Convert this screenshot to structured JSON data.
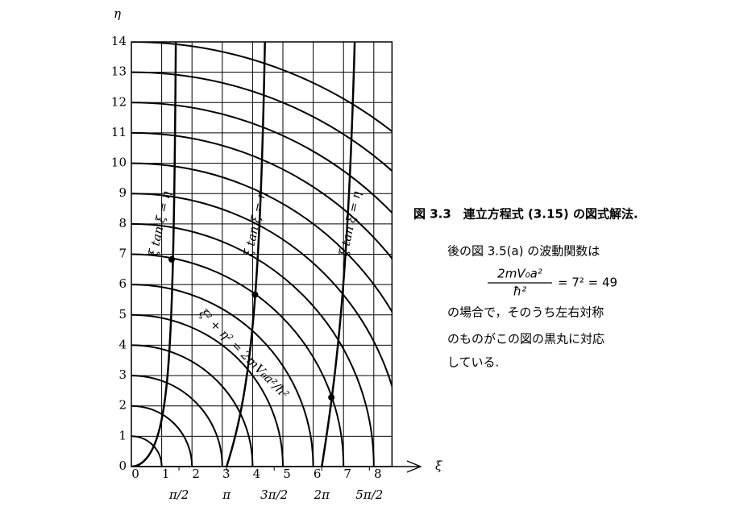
{
  "chart_data": {
    "type": "graphical-solution",
    "xlabel": "ξ",
    "ylabel": "η",
    "xlim": [
      0,
      8.6
    ],
    "ylim": [
      0,
      14
    ],
    "xticks": [
      0,
      1,
      2,
      3,
      4,
      5,
      6,
      7,
      8
    ],
    "xticks_pi": [
      {
        "value": 1.5708,
        "label": "π/2"
      },
      {
        "value": 3.1416,
        "label": "π"
      },
      {
        "value": 4.7124,
        "label": "3π/2"
      },
      {
        "value": 6.2832,
        "label": "2π"
      },
      {
        "value": 7.854,
        "label": "5π/2"
      }
    ],
    "yticks": [
      0,
      1,
      2,
      3,
      4,
      5,
      6,
      7,
      8,
      9,
      10,
      11,
      12,
      13,
      14
    ],
    "curve_labels": [
      "ξ tan ξ = η",
      "ξ tan ξ = η",
      "ξ tan ξ = η"
    ],
    "circle_label": "ξ² + η² = 2mV₀a²/ħ²",
    "points": {
      "x": [
        1.33,
        4.08,
        6.6
      ],
      "y": [
        6.83,
        5.67,
        2.28
      ]
    },
    "grid": true
  },
  "caption": {
    "title": "図 3.3　連立方程式 (3.15) の図式解法.",
    "lines": [
      "後の図 3.5(a) の波動関数は",
      "の場合で，そのうち左右対称",
      "のものがこの図の黒丸に対応",
      "している."
    ],
    "equation": {
      "numerator": "2mV₀a²",
      "denominator": "ħ²",
      "rest": "= 7² = 49"
    }
  }
}
